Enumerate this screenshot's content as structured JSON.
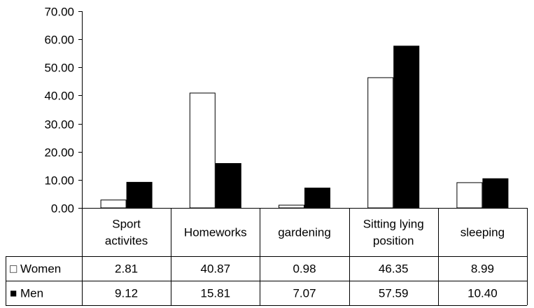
{
  "chart_data": {
    "type": "bar",
    "title": "",
    "xlabel": "",
    "ylabel": "",
    "categories": [
      [
        "Sport",
        "activites"
      ],
      [
        "Homeworks"
      ],
      [
        "gardening"
      ],
      [
        "Sitting lying",
        "position"
      ],
      [
        "sleeping"
      ]
    ],
    "series": [
      {
        "name": "Women",
        "values": [
          2.81,
          40.87,
          0.98,
          46.35,
          8.99
        ],
        "color": "#ffffff",
        "legend_symbol": "□",
        "value_labels": [
          "2.81",
          "40.87",
          "0.98",
          "46.35",
          "8.99"
        ]
      },
      {
        "name": "Men",
        "values": [
          9.12,
          15.81,
          7.07,
          57.59,
          10.4
        ],
        "color": "#000000",
        "legend_symbol": "■",
        "value_labels": [
          "9.12",
          "15.81",
          "7.07",
          "57.59",
          "10.40"
        ]
      }
    ],
    "ylim": [
      0,
      70
    ],
    "yticks": [
      "0.00",
      "10.00",
      "20.00",
      "30.00",
      "40.00",
      "50.00",
      "60.00",
      "70.00"
    ],
    "grid": false,
    "legend": "data-table"
  }
}
